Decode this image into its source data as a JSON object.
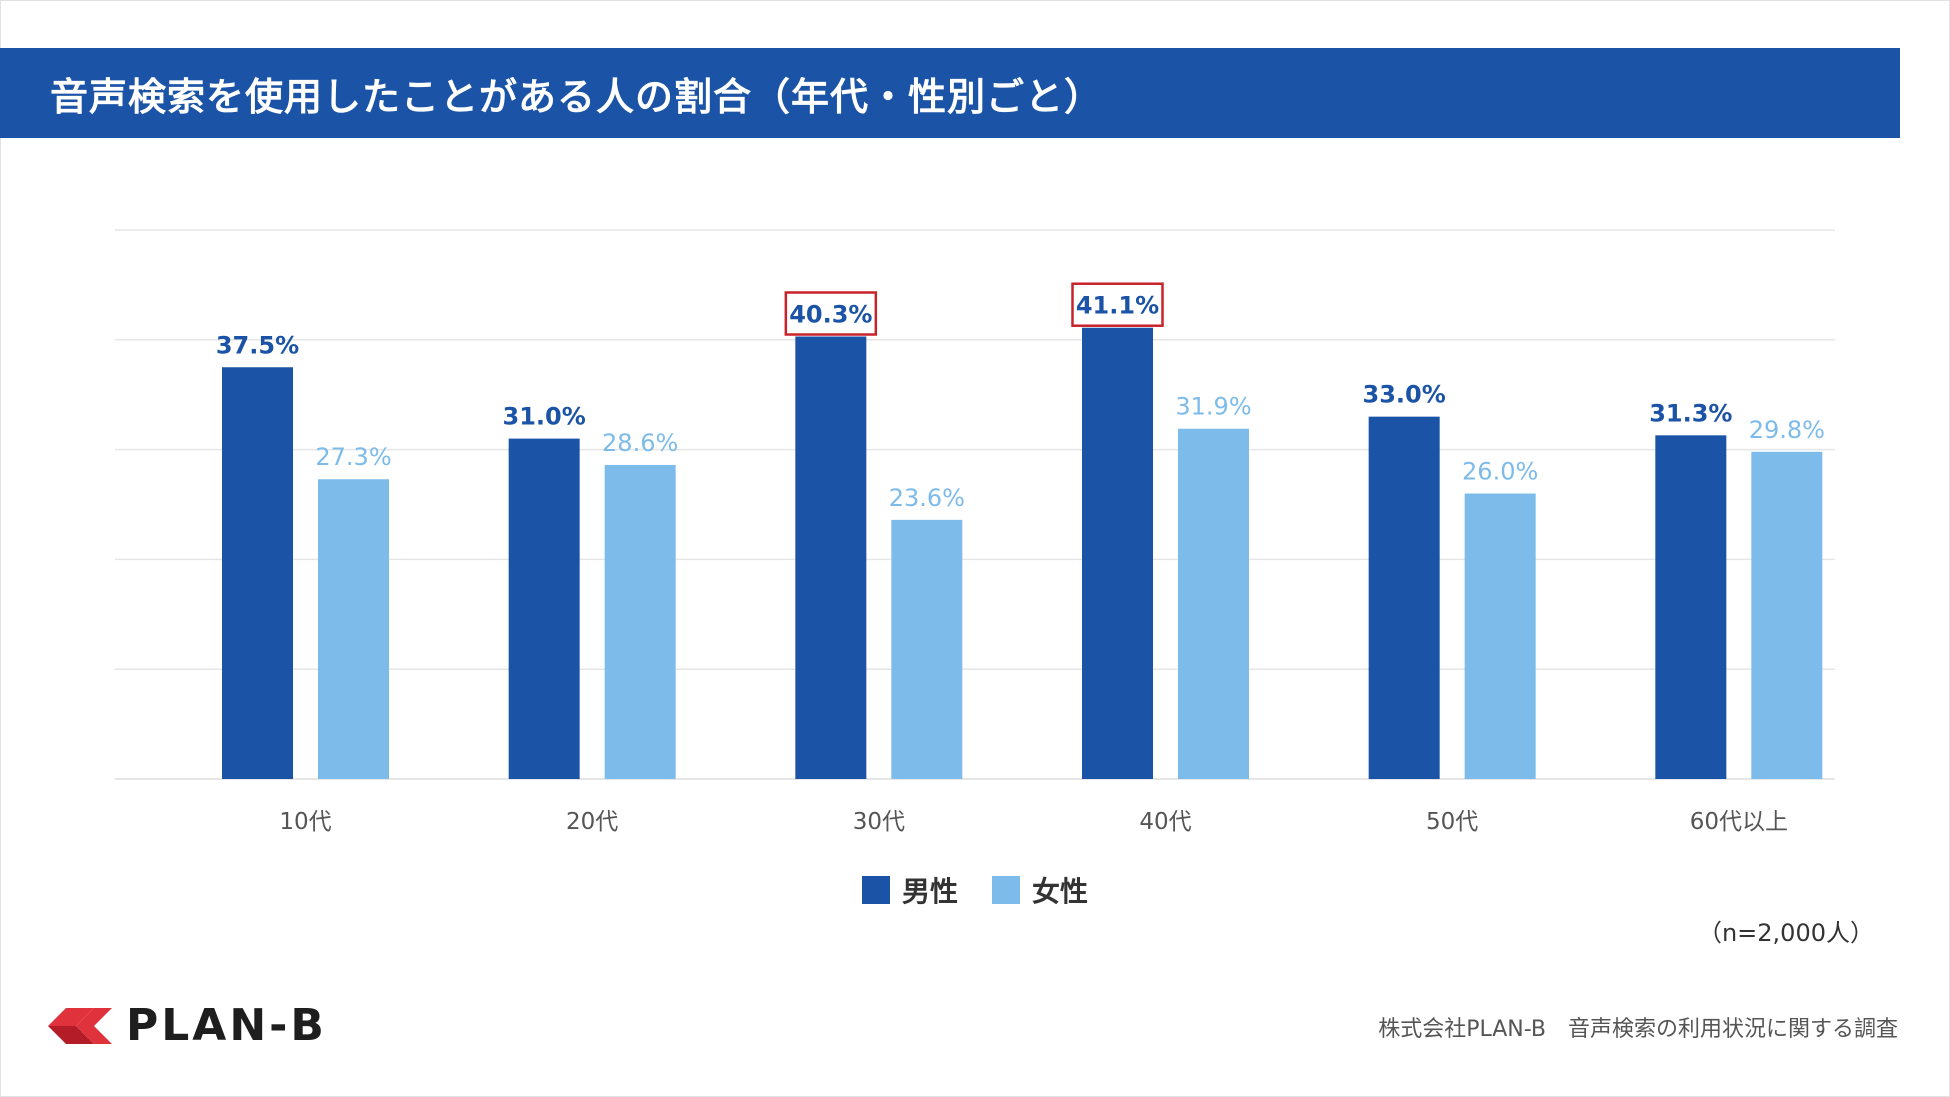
{
  "header": {
    "title": "音声検索を使用したことがある人の割合（年代・性別ごと）"
  },
  "colors": {
    "title_bg": "#1b53a6",
    "male": "#1b53a6",
    "female": "#7dbbea",
    "highlight_border": "#c8222a",
    "grid": "#e6e6e6",
    "axis_label": "#555555"
  },
  "chart_data": {
    "type": "bar",
    "title": "音声検索を使用したことがある人の割合（年代・性別ごと）",
    "categories": [
      "10代",
      "20代",
      "30代",
      "40代",
      "50代",
      "60代以上"
    ],
    "series": [
      {
        "name": "男性",
        "values": [
          37.5,
          31.0,
          40.3,
          41.1,
          33.0,
          31.3
        ],
        "labels": [
          "37.5%",
          "31.0%",
          "40.3%",
          "41.1%",
          "33.0%",
          "31.3%"
        ]
      },
      {
        "name": "女性",
        "values": [
          27.3,
          28.6,
          23.6,
          31.9,
          26.0,
          29.8
        ],
        "labels": [
          "27.3%",
          "28.6%",
          "23.6%",
          "31.9%",
          "26.0%",
          "29.8%"
        ]
      }
    ],
    "highlighted": [
      {
        "series": 0,
        "category": 2
      },
      {
        "series": 0,
        "category": 3
      }
    ],
    "ylim": [
      0,
      50
    ],
    "grid_step": 10,
    "grid": true,
    "legend": "bottom-center",
    "xlabel": "",
    "ylabel": ""
  },
  "legend": {
    "male_label": "男性",
    "female_label": "女性"
  },
  "notes": {
    "sample_size": "（n=2,000人）",
    "source": "株式会社PLAN-B　音声検索の利用状況に関する調査"
  },
  "brand": {
    "name": "PLAN-B"
  }
}
